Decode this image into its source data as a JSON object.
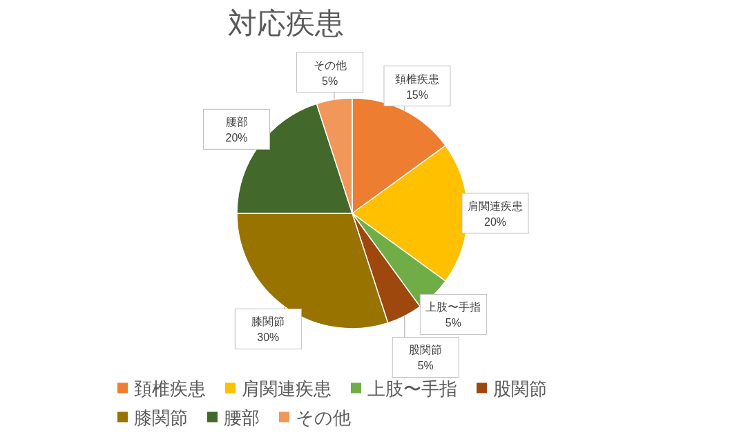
{
  "chart_data": {
    "type": "pie",
    "title": "対応疾患",
    "categories": [
      "頚椎疾患",
      "肩関連疾患",
      "上肢〜手指",
      "股関節",
      "膝関節",
      "腰部",
      "その他"
    ],
    "values": [
      15,
      20,
      5,
      5,
      30,
      20,
      5
    ],
    "colors": [
      "#ed7d31",
      "#ffc000",
      "#70ad47",
      "#9e480e",
      "#997300",
      "#43682b",
      "#f1975a"
    ],
    "value_labels": [
      "15%",
      "20%",
      "5%",
      "5%",
      "30%",
      "20%",
      "5%"
    ],
    "legend": "bottom"
  }
}
